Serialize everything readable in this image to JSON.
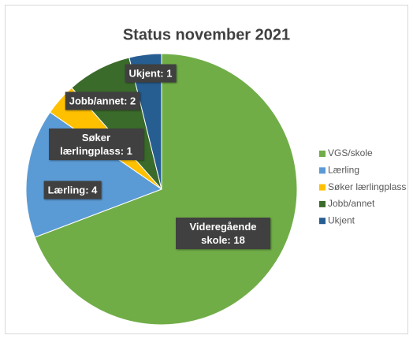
{
  "chart_data": {
    "type": "pie",
    "title": "Status november 2021",
    "categories": [
      "VGS/skole",
      "Lærling",
      "Søker lærlingplass",
      "Jobb/annet",
      "Ukjent"
    ],
    "values": [
      18,
      4,
      1,
      2,
      1
    ],
    "value_labels": [
      "Videregående skole: 18",
      "Lærling: 4",
      "Søker lærlingplass: 1",
      "Jobb/annet: 2",
      "Ukjent: 1"
    ],
    "colors": [
      "#70ad47",
      "#5b9bd5",
      "#ffc000",
      "#3b6b2b",
      "#275e92"
    ],
    "legend": "right"
  }
}
